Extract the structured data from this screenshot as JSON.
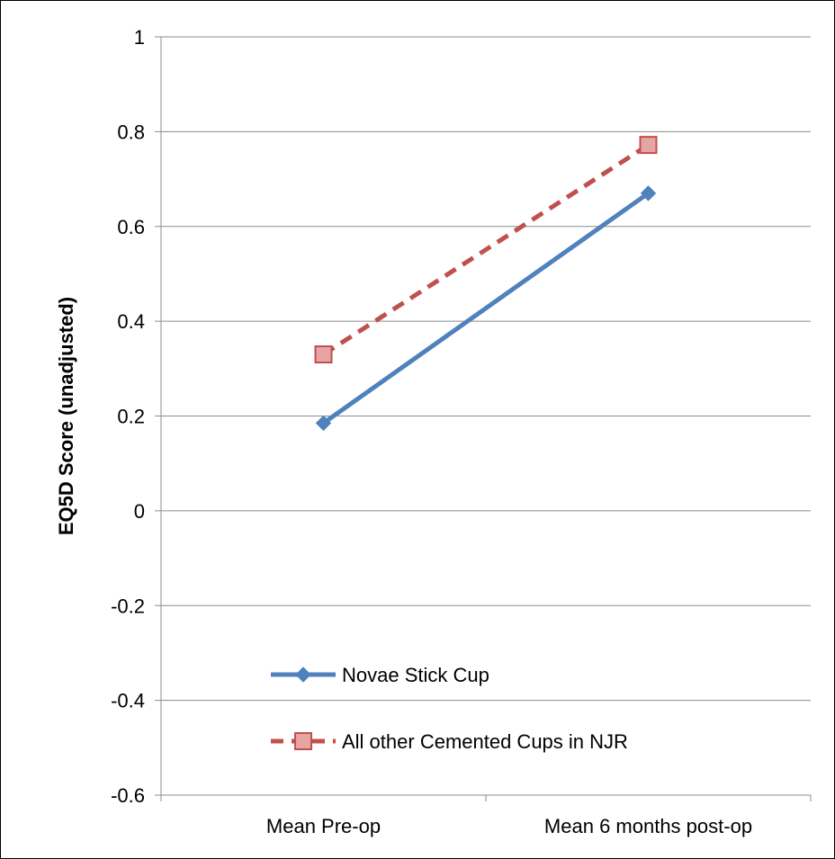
{
  "chart_data": {
    "type": "line",
    "title": "",
    "xlabel": "",
    "ylabel": "EQ5D Score (unadjusted)",
    "categories": [
      "Mean Pre-op",
      "Mean 6 months post-op"
    ],
    "ylim": [
      -0.6,
      1
    ],
    "yticks": [
      "1",
      "0.8",
      "0.6",
      "0.4",
      "0.2",
      "0",
      "-0.2",
      "-0.4",
      "-0.6"
    ],
    "grid": true,
    "legend_position": "bottom-left inside plot",
    "series": [
      {
        "name": "Novae Stick Cup",
        "values": [
          0.185,
          0.67
        ],
        "color": "#4f81bd",
        "line_style": "solid",
        "marker": "diamond"
      },
      {
        "name": "All other Cemented Cups in NJR",
        "values": [
          0.33,
          0.772
        ],
        "color": "#c0504d",
        "marker_fill": "#e6a5a3",
        "line_style": "dashed",
        "marker": "square"
      }
    ]
  }
}
